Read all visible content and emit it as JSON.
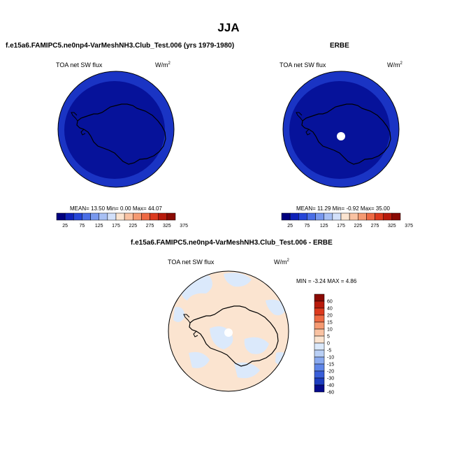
{
  "title": "JJA",
  "panels": [
    {
      "title": "f.e15a6.FAMIPC5.ne0np4-VarMeshNH3.Club_Test.006 (yrs 1979-1980)",
      "variable": "TOA net SW flux",
      "units": "W/m",
      "units_sup": "2",
      "stats": "MEAN=  13.50  Min=   0.00  Max=  44.07",
      "colorbar_labels": [
        "25",
        "75",
        "125",
        "175",
        "225",
        "275",
        "325",
        "375"
      ]
    },
    {
      "title": "ERBE",
      "variable": "TOA net SW flux",
      "units": "W/m",
      "units_sup": "2",
      "stats": "MEAN=  11.29  Min=  -0.92  Max=  35.00",
      "colorbar_labels": [
        "25",
        "75",
        "125",
        "175",
        "225",
        "275",
        "325",
        "375"
      ]
    },
    {
      "title": "f.e15a6.FAMIPC5.ne0np4-VarMeshNH3.Club_Test.006 - ERBE",
      "variable": "TOA net SW flux",
      "units": "W/m",
      "units_sup": "2",
      "stats": "MIN =  -3.24 MAX =   4.86",
      "colorbar_labels": [
        "60",
        "40",
        "20",
        "15",
        "10",
        "5",
        "0",
        "-5",
        "-10",
        "-15",
        "-20",
        "-30",
        "-40",
        "-60"
      ]
    }
  ],
  "colors": {
    "abs_scale": [
      "#00007f",
      "#0f22b9",
      "#2646d8",
      "#4a6ee6",
      "#7898ee",
      "#a8c0f4",
      "#d2e0fa",
      "#fbe4d0",
      "#f9c2a2",
      "#f59a72",
      "#ee6a44",
      "#dc3a1e",
      "#b81a0c",
      "#8a0a04"
    ],
    "diff_scale": [
      "#8a0a04",
      "#b81a0c",
      "#dc3a1e",
      "#ee6a44",
      "#f59a72",
      "#f9c2a2",
      "#fbe4d0",
      "#dbe9fb",
      "#b9cff5",
      "#8aaaf0",
      "#5f86e8",
      "#3a5fd9",
      "#1e3ec0",
      "#050a8c"
    ],
    "abs_inner": "#06129a",
    "abs_outer": "#1a34c4",
    "diff_pos": "#fbe4d0",
    "diff_neg": "#dbe9fb"
  }
}
